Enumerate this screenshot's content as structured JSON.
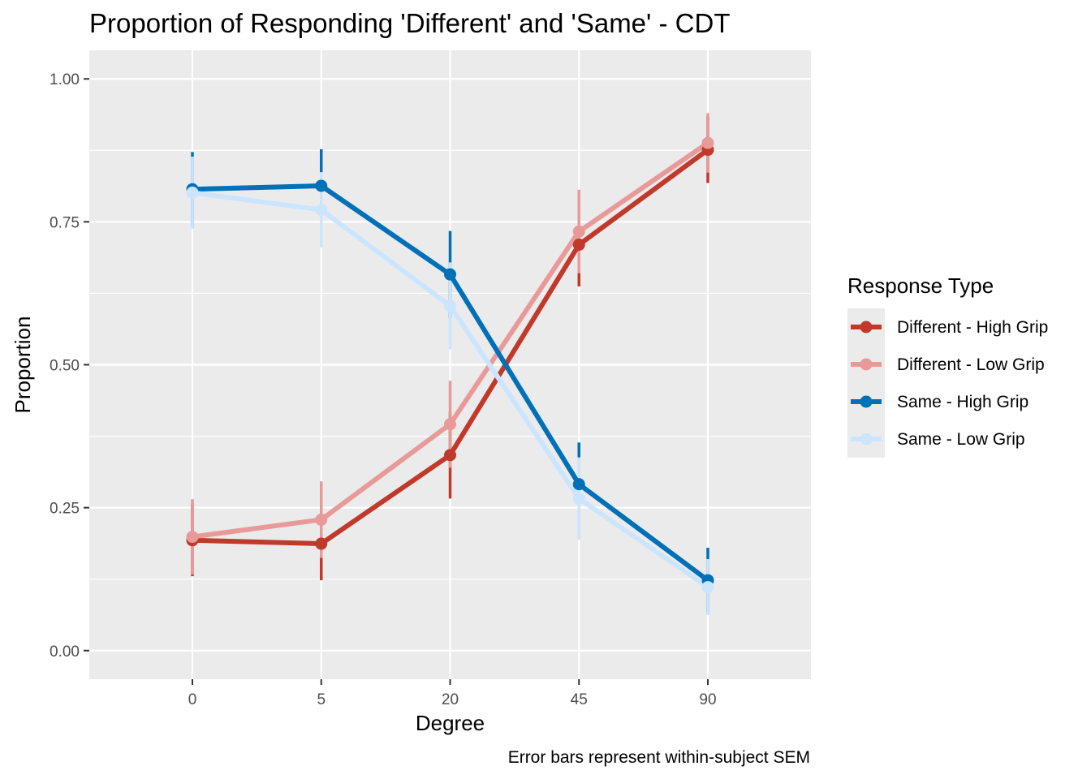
{
  "chart_data": {
    "type": "line",
    "title": "Proportion of Responding 'Different' and 'Same' - CDT",
    "xlabel": "Degree",
    "ylabel": "Proportion",
    "caption": "Error bars represent within-subject SEM",
    "categories": [
      "0",
      "5",
      "20",
      "45",
      "90"
    ],
    "ylim": [
      -0.05,
      1.05
    ],
    "yticks": [
      0.0,
      0.25,
      0.5,
      0.75,
      1.0
    ],
    "ytick_labels": [
      "0.00",
      "0.25",
      "0.50",
      "0.75",
      "1.00"
    ],
    "grid": true,
    "legend": {
      "title": "Response Type",
      "position": "right"
    },
    "series": [
      {
        "name": "Different - High Grip",
        "color": "#c0392b",
        "values": [
          0.193,
          0.187,
          0.342,
          0.71,
          0.876
        ],
        "sem": [
          0.063,
          0.064,
          0.076,
          0.073,
          0.058
        ]
      },
      {
        "name": "Different - Low Grip",
        "color": "#e89a99",
        "values": [
          0.199,
          0.229,
          0.396,
          0.733,
          0.888
        ],
        "sem": [
          0.066,
          0.067,
          0.076,
          0.073,
          0.052
        ]
      },
      {
        "name": "Same - High Grip",
        "color": "#0070b8",
        "values": [
          0.807,
          0.813,
          0.658,
          0.291,
          0.123
        ],
        "sem": [
          0.065,
          0.064,
          0.076,
          0.073,
          0.057
        ]
      },
      {
        "name": "Same - Low Grip",
        "color": "#cce5ff",
        "values": [
          0.801,
          0.771,
          0.603,
          0.266,
          0.111
        ],
        "sem": [
          0.063,
          0.066,
          0.076,
          0.072,
          0.049
        ]
      }
    ]
  }
}
